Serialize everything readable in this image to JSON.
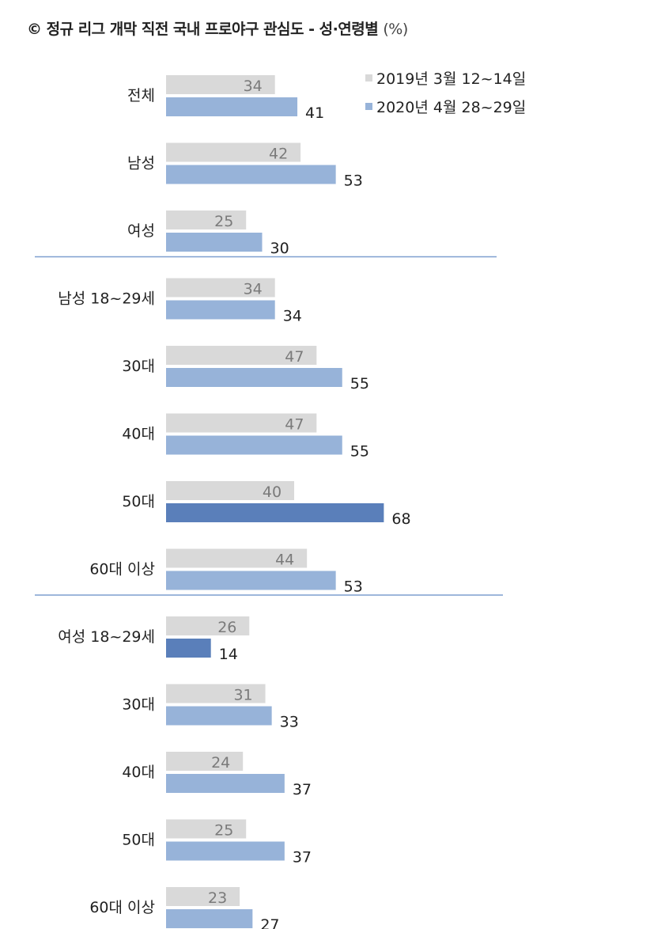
{
  "title": "정규 리그 개막 직전 국내 프로야구 관심도 - 성·연령별",
  "title_unit": "(%)",
  "title_mark": "©",
  "colors": {
    "prev": "#d9d9d9",
    "curr": "#97b3d9",
    "highlight": "#5a7fba",
    "divider": "#7f9fcf"
  },
  "chart_data": {
    "type": "bar",
    "orientation": "horizontal",
    "categories": [
      "전체",
      "남성",
      "여성",
      "남성 18~29세",
      "30대",
      "40대",
      "50대",
      "60대 이상",
      "여성 18~29세",
      "30대",
      "40대",
      "50대",
      "60대 이상"
    ],
    "series": [
      {
        "name": "2019년 3월 12~14일",
        "values": [
          34,
          42,
          25,
          34,
          47,
          47,
          40,
          44,
          26,
          31,
          24,
          25,
          23
        ]
      },
      {
        "name": "2020년 4월 28~29일",
        "values": [
          41,
          53,
          30,
          34,
          55,
          55,
          68,
          53,
          14,
          33,
          37,
          37,
          27
        ]
      }
    ],
    "highlighted_2020": [
      6,
      8
    ],
    "group_dividers_after": [
      2,
      7
    ],
    "legend_position": "top-right",
    "xlim": [
      0,
      100
    ],
    "grid": false
  }
}
